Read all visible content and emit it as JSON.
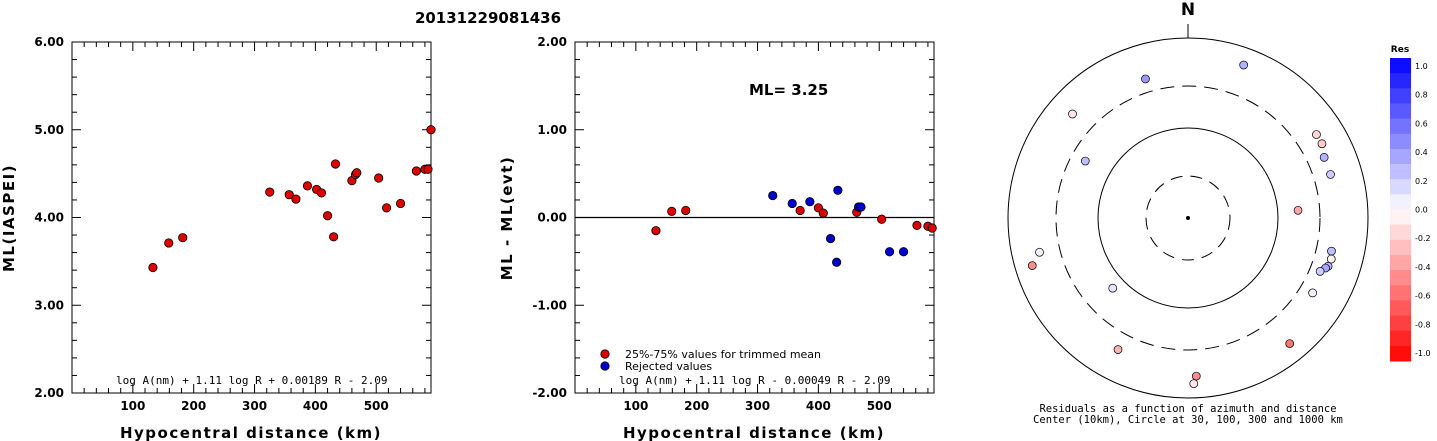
{
  "title": "20131229081436",
  "chart_data": [
    {
      "type": "scatter",
      "xlabel": "Hypocentral distance (km)",
      "ylabel": "ML(IASPEI)",
      "xlim": [
        0,
        590
      ],
      "ylim": [
        2.0,
        6.0
      ],
      "xticks": [
        "100",
        "200",
        "300",
        "400",
        "500"
      ],
      "yticks": [
        "2.00",
        "3.00",
        "4.00",
        "5.00",
        "6.00"
      ],
      "formula": "log A(nm) + 1.11 log R + 0.00189 R - 2.09",
      "series": [
        {
          "name": "25%-75% values for trimmed mean",
          "color": "#dd0000",
          "points": [
            [
              133,
              3.43
            ],
            [
              159,
              3.71
            ],
            [
              182,
              3.77
            ],
            [
              325,
              4.29
            ],
            [
              357,
              4.26
            ],
            [
              368,
              4.21
            ],
            [
              387,
              4.36
            ],
            [
              402,
              4.32
            ],
            [
              410,
              4.28
            ],
            [
              420,
              4.02
            ],
            [
              430,
              3.78
            ],
            [
              433,
              4.61
            ],
            [
              460,
              4.42
            ],
            [
              466,
              4.49
            ],
            [
              468,
              4.51
            ],
            [
              504,
              4.45
            ],
            [
              517,
              4.11
            ],
            [
              540,
              4.16
            ],
            [
              566,
              4.53
            ],
            [
              580,
              4.55
            ],
            [
              585,
              4.55
            ],
            [
              590,
              5.0
            ]
          ]
        }
      ]
    },
    {
      "type": "scatter",
      "xlabel": "Hypocentral distance (km)",
      "ylabel": "ML - ML(evt)",
      "xlim": [
        0,
        590
      ],
      "ylim": [
        -2.0,
        2.0
      ],
      "xticks": [
        "100",
        "200",
        "300",
        "400",
        "500"
      ],
      "yticks": [
        "-2.00",
        "-1.00",
        "0.00",
        "1.00",
        "2.00"
      ],
      "annotation": "ML= 3.25",
      "formula": "log A(nm) + 1.11 log R - 0.00049 R - 2.09",
      "series": [
        {
          "name": "25%-75% values for trimmed mean",
          "color": "#dd0000",
          "points": [
            [
              133,
              -0.15
            ],
            [
              159,
              0.07
            ],
            [
              182,
              0.08
            ],
            [
              370,
              0.08
            ],
            [
              400,
              0.11
            ],
            [
              408,
              0.05
            ],
            [
              463,
              0.06
            ],
            [
              504,
              -0.02
            ],
            [
              562,
              -0.09
            ],
            [
              580,
              -0.1
            ],
            [
              587,
              -0.12
            ]
          ]
        },
        {
          "name": "Rejected values",
          "color": "#0000cc",
          "points": [
            [
              325,
              0.25
            ],
            [
              357,
              0.16
            ],
            [
              386,
              0.18
            ],
            [
              420,
              -0.24
            ],
            [
              430,
              -0.51
            ],
            [
              432,
              0.31
            ],
            [
              466,
              0.12
            ],
            [
              470,
              0.12
            ],
            [
              517,
              -0.39
            ],
            [
              540,
              -0.39
            ]
          ]
        }
      ]
    },
    {
      "type": "polar",
      "north_label": "N",
      "caption_line1": "Residuals as a function of azimuth and distance",
      "caption_line2": "Center (10km), Circle at 30, 100, 300 and 1000 km",
      "colorbar": {
        "title": "Res",
        "labels": [
          "1.0",
          "0.8",
          "0.6",
          "0.4",
          "0.2",
          "0.0",
          "-0.2",
          "-0.4",
          "-0.6",
          "-0.8",
          "-1.0"
        ]
      },
      "points": [
        {
          "azimuth": 20,
          "distance": 650,
          "residual": 0.3
        },
        {
          "azimuth": 343,
          "distance": 420,
          "residual": 0.4
        },
        {
          "azimuth": 312,
          "distance": 540,
          "residual": -0.1
        },
        {
          "azimuth": 299,
          "distance": 205,
          "residual": 0.25
        },
        {
          "azimuth": 57,
          "distance": 510,
          "residual": -0.15
        },
        {
          "azimuth": 61,
          "distance": 510,
          "residual": -0.2
        },
        {
          "azimuth": 66,
          "distance": 460,
          "residual": 0.3
        },
        {
          "azimuth": 73,
          "distance": 460,
          "residual": 0.2
        },
        {
          "azimuth": 86,
          "distance": 170,
          "residual": -0.35
        },
        {
          "azimuth": 103,
          "distance": 440,
          "residual": 0.25
        },
        {
          "azimuth": 106,
          "distance": 460,
          "residual": -0.05
        },
        {
          "azimuth": 109,
          "distance": 450,
          "residual": 0.3
        },
        {
          "azimuth": 110,
          "distance": 430,
          "residual": 0.35
        },
        {
          "azimuth": 112,
          "distance": 390,
          "residual": 0.2
        },
        {
          "azimuth": 121,
          "distance": 420,
          "residual": 0.05
        },
        {
          "azimuth": 141,
          "distance": 630,
          "residual": -0.55
        },
        {
          "azimuth": 177,
          "distance": 580,
          "residual": -0.45
        },
        {
          "azimuth": 178,
          "distance": 700,
          "residual": -0.1
        },
        {
          "azimuth": 208,
          "distance": 460,
          "residual": -0.3
        },
        {
          "azimuth": 227,
          "distance": 140,
          "residual": 0.1
        },
        {
          "azimuth": 253,
          "distance": 650,
          "residual": -0.45
        },
        {
          "azimuth": 257,
          "distance": 500,
          "residual": 0.05
        }
      ]
    }
  ]
}
